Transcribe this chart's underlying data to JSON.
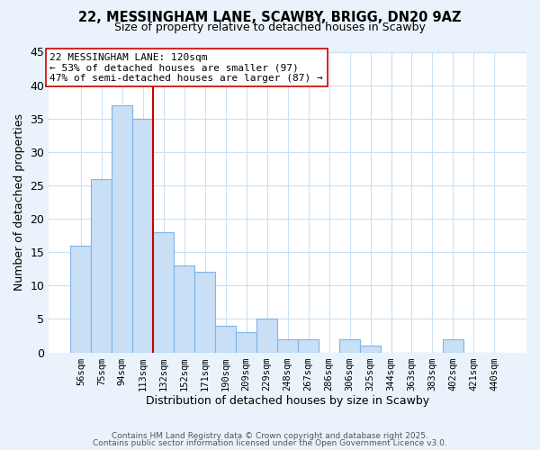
{
  "title_line1": "22, MESSINGHAM LANE, SCAWBY, BRIGG, DN20 9AZ",
  "title_line2": "Size of property relative to detached houses in Scawby",
  "xlabel": "Distribution of detached houses by size in Scawby",
  "ylabel": "Number of detached properties",
  "categories": [
    "56sqm",
    "75sqm",
    "94sqm",
    "113sqm",
    "132sqm",
    "152sqm",
    "171sqm",
    "190sqm",
    "209sqm",
    "229sqm",
    "248sqm",
    "267sqm",
    "286sqm",
    "306sqm",
    "325sqm",
    "344sqm",
    "363sqm",
    "383sqm",
    "402sqm",
    "421sqm",
    "440sqm"
  ],
  "values": [
    16,
    26,
    37,
    35,
    18,
    13,
    12,
    4,
    3,
    5,
    2,
    2,
    0,
    2,
    1,
    0,
    0,
    0,
    2,
    0,
    0
  ],
  "bar_color": "#c8dff5",
  "bar_edge_color": "#7fb3e8",
  "vline_color": "#cc0000",
  "vline_x_index": 3.5,
  "annotation_line1": "22 MESSINGHAM LANE: 120sqm",
  "annotation_line2": "← 53% of detached houses are smaller (97)",
  "annotation_line3": "47% of semi-detached houses are larger (87) →",
  "annotation_box_edge_color": "#cc0000",
  "ylim": [
    0,
    45
  ],
  "yticks": [
    0,
    5,
    10,
    15,
    20,
    25,
    30,
    35,
    40,
    45
  ],
  "footer_line1": "Contains HM Land Registry data © Crown copyright and database right 2025.",
  "footer_line2": "Contains public sector information licensed under the Open Government Licence v3.0.",
  "bg_color": "#eaf3fb",
  "plot_bg_color": "#ffffff",
  "grid_color": "#c8dff5"
}
